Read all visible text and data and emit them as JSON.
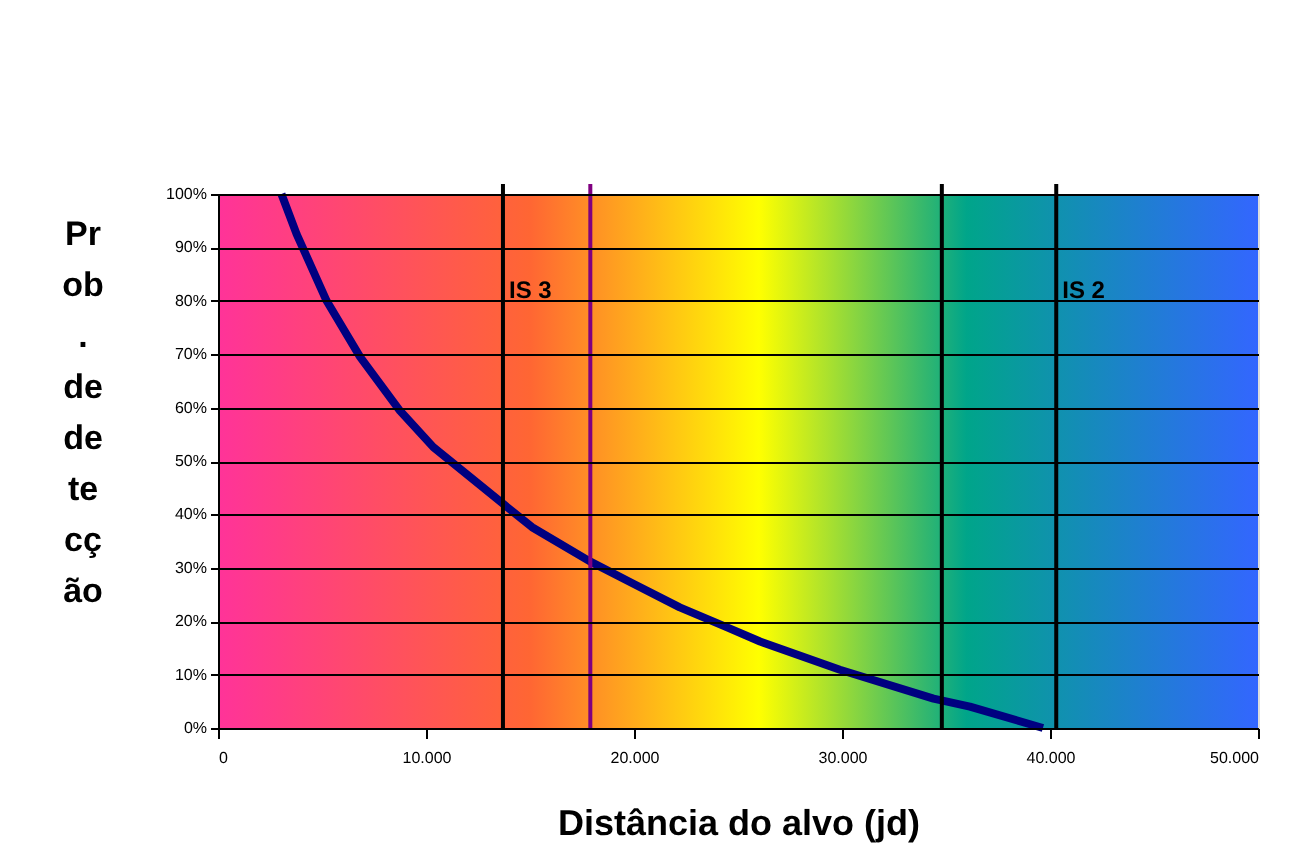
{
  "chart_data": {
    "type": "line",
    "xlabel": "Distância do alvo (jd)",
    "ylabel": "Prob. de detecção",
    "x": [
      3050,
      3780,
      5220,
      6830,
      8750,
      10350,
      13700,
      15100,
      17880,
      19970,
      22200,
      24450,
      26060,
      29900,
      34400,
      36150,
      39660
    ],
    "series": [
      {
        "color": "#000080",
        "values": [
          100,
          92.5,
          80,
          69.5,
          59.4,
          52.6,
          42,
          37.6,
          31.2,
          27,
          22.6,
          18.9,
          16.2,
          10.9,
          5.5,
          4,
          0
        ]
      }
    ],
    "xlim": [
      0,
      50000
    ],
    "xticks": [
      0,
      {
        "value": 10000,
        "label": "10.000"
      },
      {
        "value": 20000,
        "label": "20.000"
      },
      {
        "value": 30000,
        "label": "30.000"
      },
      {
        "value": 40000,
        "label": "40.000"
      },
      {
        "value": 50000,
        "label": "50.000"
      }
    ],
    "ylim": [
      0,
      100
    ],
    "yticks": [
      {
        "value": 0,
        "label": "0%"
      },
      {
        "value": 10,
        "label": "10%"
      },
      {
        "value": 20,
        "label": "20%"
      },
      {
        "value": 30,
        "label": "30%"
      },
      {
        "value": 40,
        "label": "40%"
      },
      {
        "value": 50,
        "label": "50%"
      },
      {
        "value": 60,
        "label": "60%"
      },
      {
        "value": 70,
        "label": "70%"
      },
      {
        "value": 80,
        "label": "80%"
      },
      {
        "value": 90,
        "label": "90%"
      },
      {
        "value": 100,
        "label": "100%"
      }
    ],
    "ref_lines": [
      {
        "axis": "x",
        "value": 13700,
        "label": "IS 3",
        "color": "#000000"
      },
      {
        "axis": "x",
        "value": 17900,
        "color": "#800080"
      },
      {
        "axis": "x",
        "value": 34800,
        "color": "#000000"
      },
      {
        "axis": "x",
        "value": 40300,
        "label": "IS 2",
        "color": "#000000"
      }
    ],
    "grid": "y",
    "marker": "none",
    "line_style": "solid"
  }
}
